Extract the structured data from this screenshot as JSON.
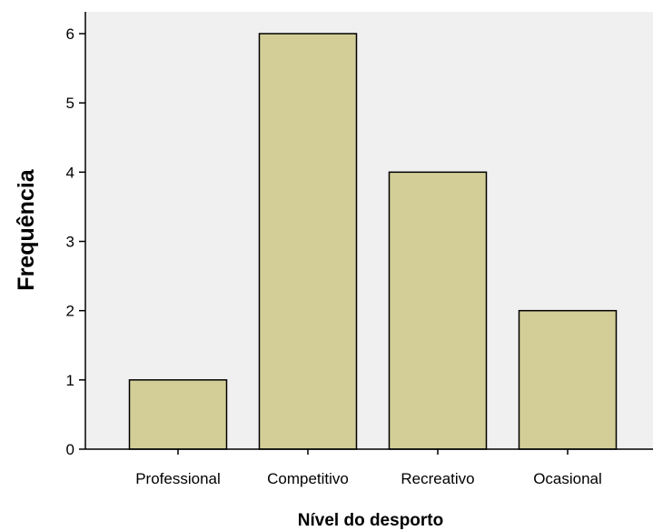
{
  "chart_data": {
    "type": "bar",
    "title": "",
    "xlabel": "Nível do desporto",
    "ylabel": "Frequência",
    "categories": [
      "Professional",
      "Competitivo",
      "Recreativo",
      "Ocasional"
    ],
    "values": [
      1,
      6,
      4,
      2
    ],
    "ylim": [
      0,
      6
    ],
    "yticks": [
      0,
      1,
      2,
      3,
      4,
      5,
      6
    ],
    "grid": false,
    "colors": {
      "plot_background": "#f0f0f0",
      "bar_fill": "#d3ce97",
      "bar_stroke": "#000000"
    }
  }
}
